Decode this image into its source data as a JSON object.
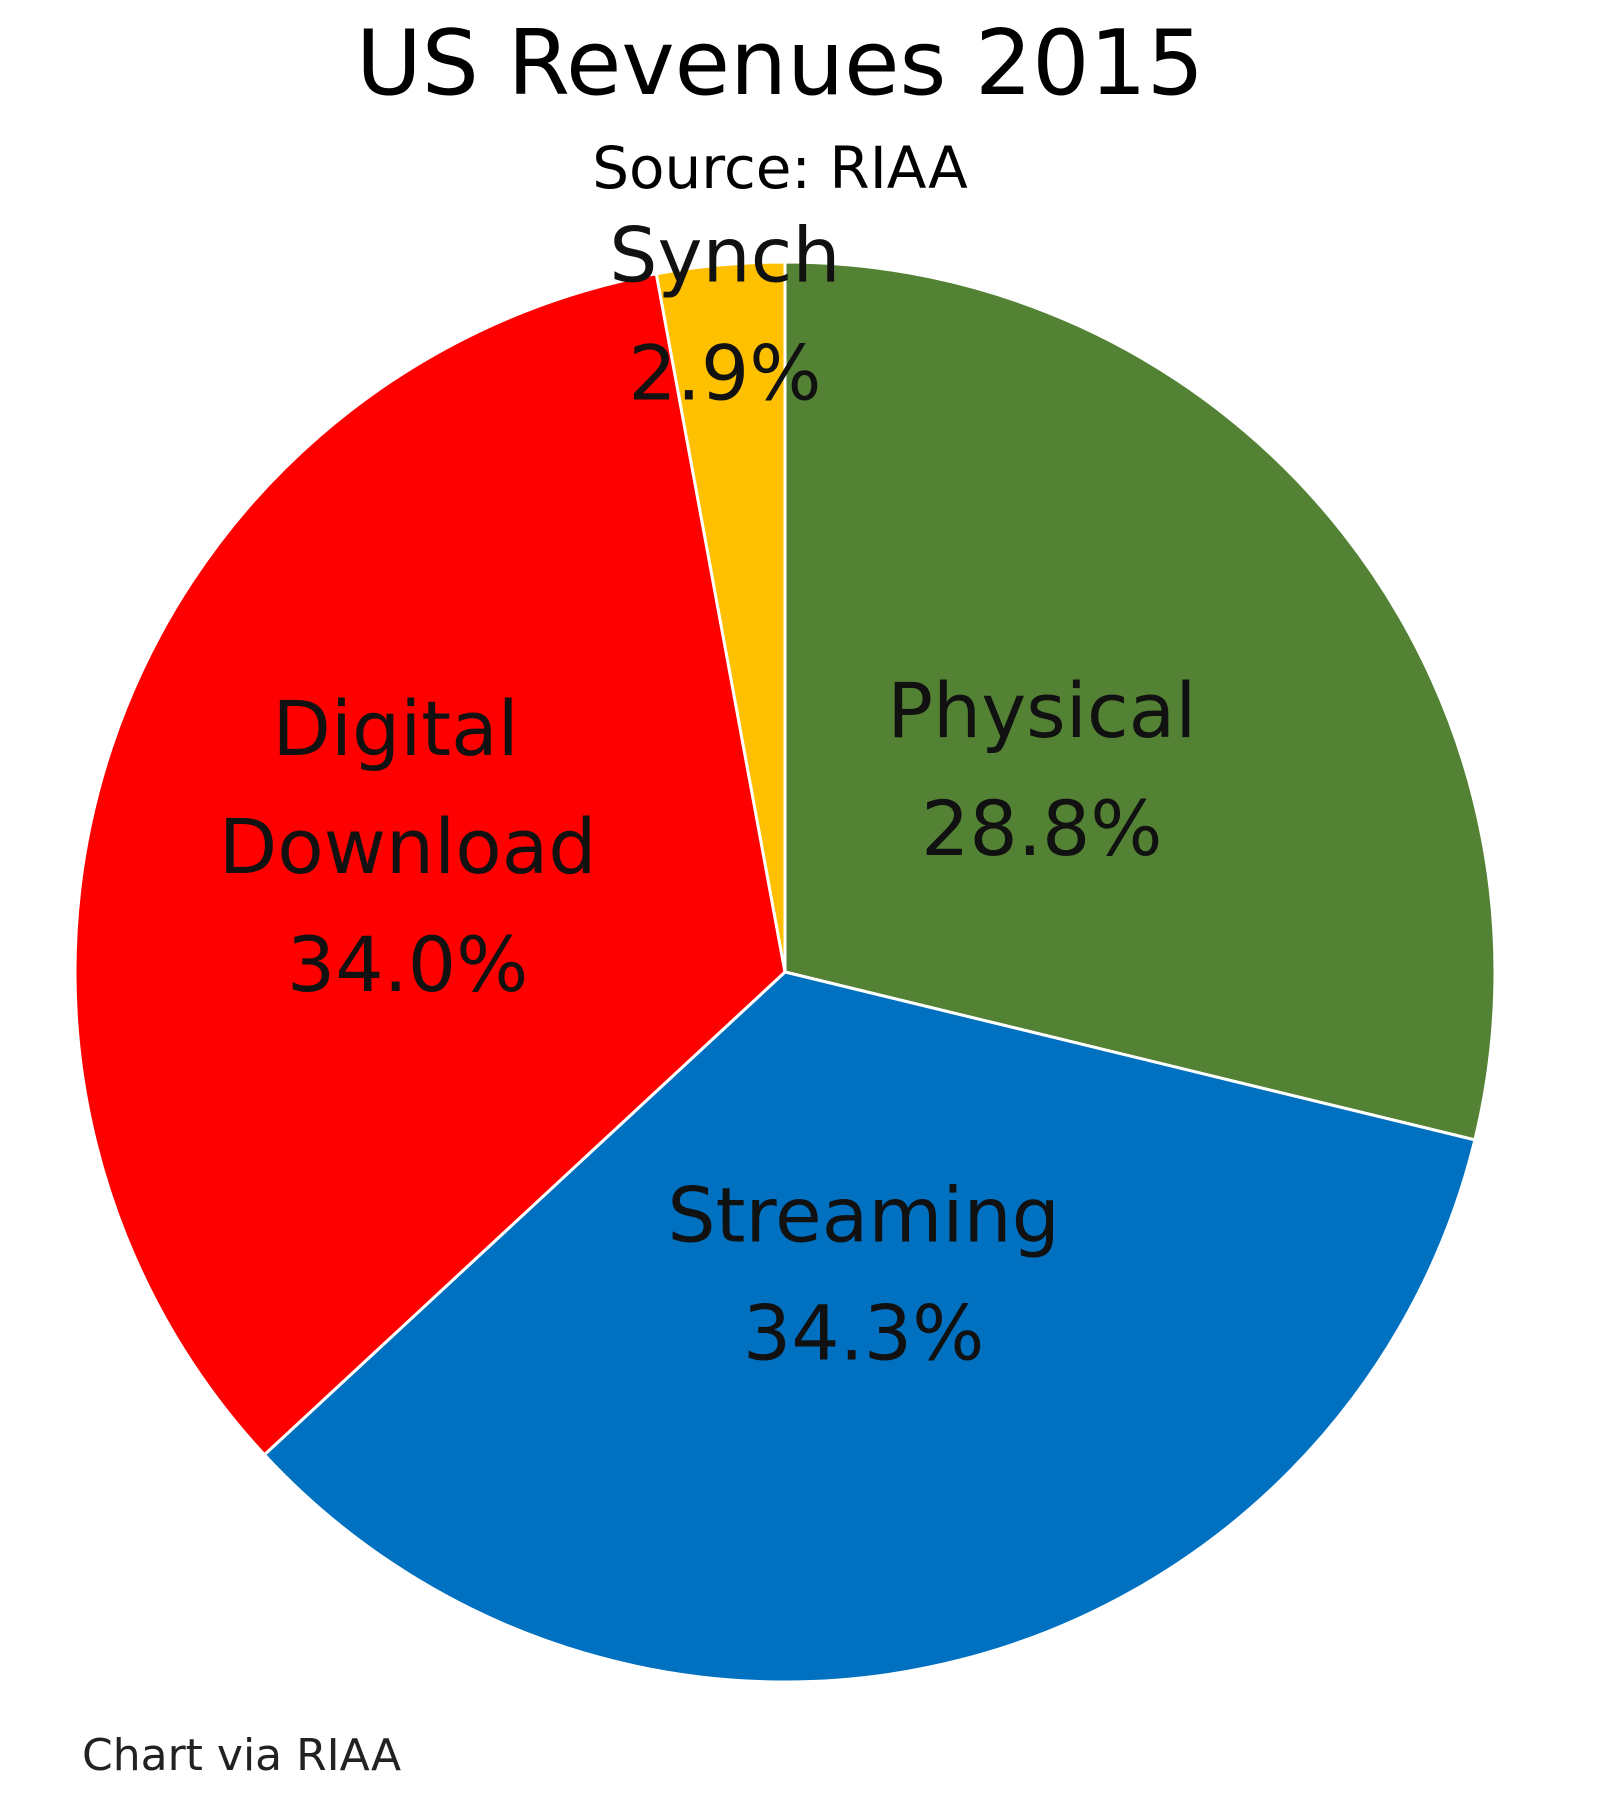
{
  "chart_data": {
    "type": "pie",
    "title": "US Revenues 2015",
    "subtitle": "Source: RIAA",
    "slices": [
      {
        "label": "Physical",
        "value": 28.8,
        "display": "28.8%",
        "color": "#548235"
      },
      {
        "label": "Streaming",
        "value": 34.3,
        "display": "34.3%",
        "color": "#0070C0"
      },
      {
        "label": "Digital Download",
        "value": 34.0,
        "display": "34.0%",
        "color": "#FF0000"
      },
      {
        "label": "Synch",
        "value": 2.9,
        "display": "2.9%",
        "color": "#FFC000"
      }
    ],
    "start": "12 o'clock",
    "direction": "clockwise"
  },
  "caption": "Chart via RIAA"
}
